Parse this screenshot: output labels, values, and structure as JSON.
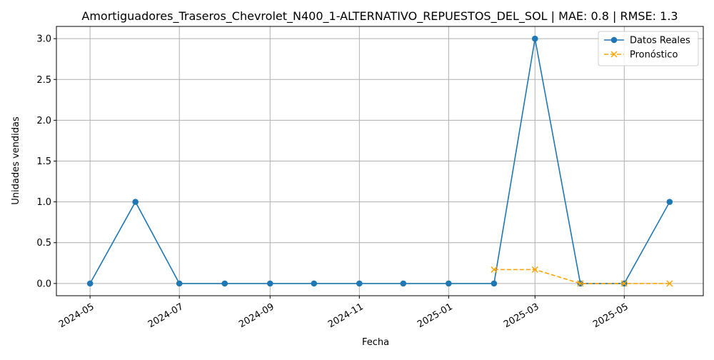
{
  "chart_data": {
    "type": "line",
    "title": "Amortiguadores_Traseros_Chevrolet_N400_1-ALTERNATIVO_REPUESTOS_DEL_SOL | MAE: 0.8 | RMSE: 1.3",
    "xlabel": "Fecha",
    "ylabel": "Unidades vendidas",
    "x_range": [
      "2024-04-08",
      "2025-06-24"
    ],
    "ylim": [
      -0.15,
      3.15
    ],
    "x_ticks": [
      "2024-05",
      "2024-07",
      "2024-09",
      "2024-11",
      "2025-01",
      "2025-03",
      "2025-05"
    ],
    "y_ticks": [
      "0.0",
      "0.5",
      "1.0",
      "1.5",
      "2.0",
      "2.5",
      "3.0"
    ],
    "grid": true,
    "legend_position": "top-right",
    "series": [
      {
        "name": "Datos Reales",
        "color": "#1f77b4",
        "line_style": "solid",
        "marker": "circle",
        "points": [
          {
            "x": "2024-05-01",
            "y": 0
          },
          {
            "x": "2024-06-01",
            "y": 1
          },
          {
            "x": "2024-07-01",
            "y": 0
          },
          {
            "x": "2024-08-01",
            "y": 0
          },
          {
            "x": "2024-09-01",
            "y": 0
          },
          {
            "x": "2024-10-01",
            "y": 0
          },
          {
            "x": "2024-11-01",
            "y": 0
          },
          {
            "x": "2024-12-01",
            "y": 0
          },
          {
            "x": "2025-01-01",
            "y": 0
          },
          {
            "x": "2025-02-01",
            "y": 0
          },
          {
            "x": "2025-03-01",
            "y": 3
          },
          {
            "x": "2025-04-01",
            "y": 0
          },
          {
            "x": "2025-05-01",
            "y": 0
          },
          {
            "x": "2025-06-01",
            "y": 1
          }
        ]
      },
      {
        "name": "Pronóstico",
        "color": "#ffa500",
        "line_style": "dashed",
        "marker": "x",
        "points": [
          {
            "x": "2025-02-01",
            "y": 0.17
          },
          {
            "x": "2025-03-01",
            "y": 0.17
          },
          {
            "x": "2025-04-01",
            "y": 0.0
          },
          {
            "x": "2025-05-01",
            "y": 0.0
          },
          {
            "x": "2025-06-01",
            "y": 0.0
          }
        ]
      }
    ]
  }
}
